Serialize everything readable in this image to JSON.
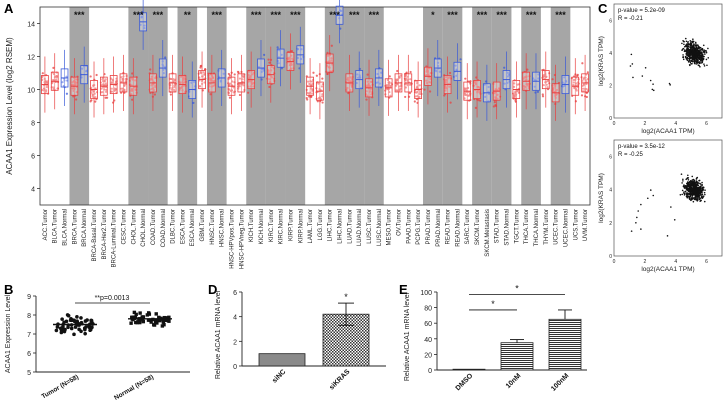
{
  "chart_data": [
    {
      "id": "A",
      "panel_label": "A",
      "type": "box",
      "ylabel": "ACAA1 Expression Level (log2 RSEM)",
      "ylim": [
        3,
        15
      ],
      "yticks": [
        "4",
        "6",
        "8",
        "10",
        "12",
        "14"
      ],
      "categories": [
        "ACC.Tumor",
        "BLCA.Tumor",
        "BLCA.Normal",
        "BRCA.Tumor",
        "BRCA.Normal",
        "BRCA-Basal.Tumor",
        "BRCA-Her2.Tumor",
        "BRCA-Luminal.Tumor",
        "CESC.Tumor",
        "CHOL.Tumor",
        "CHOL.Normal",
        "COAD.Tumor",
        "COAD.Normal",
        "DLBC.Tumor",
        "ESCA.Tumor",
        "ESCA.Normal",
        "GBM.Tumor",
        "HNSC.Tumor",
        "HNSC.Normal",
        "HNSC-HPVpos.Tumor",
        "HNSC-HPVneg.Tumor",
        "KICH.Tumor",
        "KICH.Normal",
        "KIRC.Tumor",
        "KIRC.Normal",
        "KIRP.Tumor",
        "KIRP.Normal",
        "LAML.Tumor",
        "LGG.Tumor",
        "LIHC.Tumor",
        "LIHC.Normal",
        "LUAD.Tumor",
        "LUAD.Normal",
        "LUSC.Tumor",
        "LUSC.Normal",
        "MESO.Tumor",
        "OV.Tumor",
        "PAAD.Tumor",
        "PCPG.Tumor",
        "PRAD.Tumor",
        "PRAD.Normal",
        "READ.Tumor",
        "READ.Normal",
        "SARC.Tumor",
        "SKCM.Tumor",
        "SKCM.Metastasis",
        "STAD.Tumor",
        "STAD.Normal",
        "TGCT.Tumor",
        "THCA.Tumor",
        "THCA.Normal",
        "THYM.Tumor",
        "UCEC.Tumor",
        "UCEC.Normal",
        "UCS.Tumor",
        "UVM.Tumor"
      ],
      "medians": [
        10.3,
        10.5,
        10.7,
        10.2,
        10.9,
        10.0,
        10.2,
        10.3,
        10.4,
        10.2,
        14.1,
        10.4,
        11.3,
        10.4,
        10.3,
        10.0,
        10.6,
        10.4,
        10.7,
        10.2,
        10.4,
        10.6,
        11.3,
        10.9,
        11.9,
        11.7,
        12.1,
        10.2,
        9.9,
        11.6,
        14.5,
        10.4,
        10.6,
        10.1,
        10.7,
        10.1,
        10.4,
        10.4,
        10.0,
        10.8,
        11.3,
        10.3,
        11.1,
        9.9,
        10.0,
        9.8,
        9.9,
        10.6,
        10.0,
        10.5,
        10.5,
        10.6,
        9.8,
        10.3,
        10.2,
        10.4
      ],
      "shaded_pairs": [
        [
          3,
          4
        ],
        [
          9,
          10
        ],
        [
          11,
          12
        ],
        [
          14,
          15
        ],
        [
          17,
          18
        ],
        [
          21,
          22
        ],
        [
          23,
          24
        ],
        [
          25,
          26
        ],
        [
          29,
          30
        ],
        [
          31,
          32
        ],
        [
          33,
          34
        ],
        [
          39,
          40
        ],
        [
          41,
          42
        ],
        [
          44,
          45
        ],
        [
          46,
          47
        ],
        [
          49,
          50
        ],
        [
          52,
          53
        ]
      ],
      "significance": [
        {
          "pair": [
            3,
            4
          ],
          "label": "***"
        },
        {
          "pair": [
            9,
            10
          ],
          "label": "***"
        },
        {
          "pair": [
            11,
            12
          ],
          "label": "***"
        },
        {
          "pair": [
            14,
            15
          ],
          "label": "**"
        },
        {
          "pair": [
            17,
            18
          ],
          "label": "***"
        },
        {
          "pair": [
            21,
            22
          ],
          "label": "***"
        },
        {
          "pair": [
            23,
            24
          ],
          "label": "***"
        },
        {
          "pair": [
            25,
            26
          ],
          "label": "***"
        },
        {
          "pair": [
            29,
            30
          ],
          "label": "***"
        },
        {
          "pair": [
            31,
            32
          ],
          "label": "***"
        },
        {
          "pair": [
            33,
            34
          ],
          "label": "***"
        },
        {
          "pair": [
            39,
            40
          ],
          "label": "*"
        },
        {
          "pair": [
            41,
            42
          ],
          "label": "***"
        },
        {
          "pair": [
            44,
            45
          ],
          "label": "***"
        },
        {
          "pair": [
            46,
            47
          ],
          "label": "***"
        },
        {
          "pair": [
            49,
            50
          ],
          "label": "***"
        },
        {
          "pair": [
            52,
            53
          ],
          "label": "***"
        }
      ],
      "colors": {
        "tumor": "#e84040",
        "normal": "#3a5ad8",
        "shade": "#a6a6a6"
      }
    },
    {
      "id": "B",
      "panel_label": "B",
      "type": "scatter",
      "ylabel": "ACAA1 Expression Level",
      "ylim": [
        5,
        9
      ],
      "yticks": [
        "5",
        "6",
        "7",
        "8",
        "9"
      ],
      "categories": [
        "Tumor (N=58)",
        "Normal (N=58)"
      ],
      "means": [
        7.5,
        7.8
      ],
      "annotation": "**p=0.0013"
    },
    {
      "id": "C",
      "panel_label": "C",
      "type": "scatter",
      "subplots": [
        {
          "stats_p": "p-value = 5.2e-09",
          "stats_r": "R = -0.21",
          "ylabel": "log2(KRAS TPM)",
          "xlabel": "log2(ACAA1 TPM)",
          "xticks": [
            "0",
            "2",
            "4",
            "6"
          ],
          "yticks": [
            "0",
            "2",
            "4",
            "6"
          ]
        },
        {
          "stats_p": "p-value = 3.5e-12",
          "stats_r": "R = -0.25",
          "ylabel": "log2(KRAS TPM)",
          "xlabel": "log2(ACAA1 TPM)",
          "xticks": [
            "0",
            "2",
            "4",
            "6"
          ],
          "yticks": [
            "0",
            "2",
            "4",
            "6"
          ]
        }
      ]
    },
    {
      "id": "D",
      "panel_label": "D",
      "type": "bar",
      "ylabel": "Relative ACAA1 mRNA level",
      "ylim": [
        0,
        6
      ],
      "yticks": [
        "0",
        "2",
        "4",
        "6"
      ],
      "categories": [
        "siNC",
        "siKRAS"
      ],
      "values": [
        1.0,
        4.2
      ],
      "errors": [
        0,
        0.9
      ],
      "significance": "*"
    },
    {
      "id": "E",
      "panel_label": "E",
      "type": "bar",
      "ylabel": "Relative ACAA1 mRNA level",
      "ylim": [
        0,
        100
      ],
      "yticks": [
        "0",
        "20",
        "40",
        "60",
        "80",
        "100"
      ],
      "categories": [
        "DMSO",
        "10nM",
        "100nM"
      ],
      "values": [
        1,
        35,
        65
      ],
      "errors": [
        0,
        4,
        12
      ],
      "significance": [
        "*",
        "*"
      ]
    }
  ]
}
